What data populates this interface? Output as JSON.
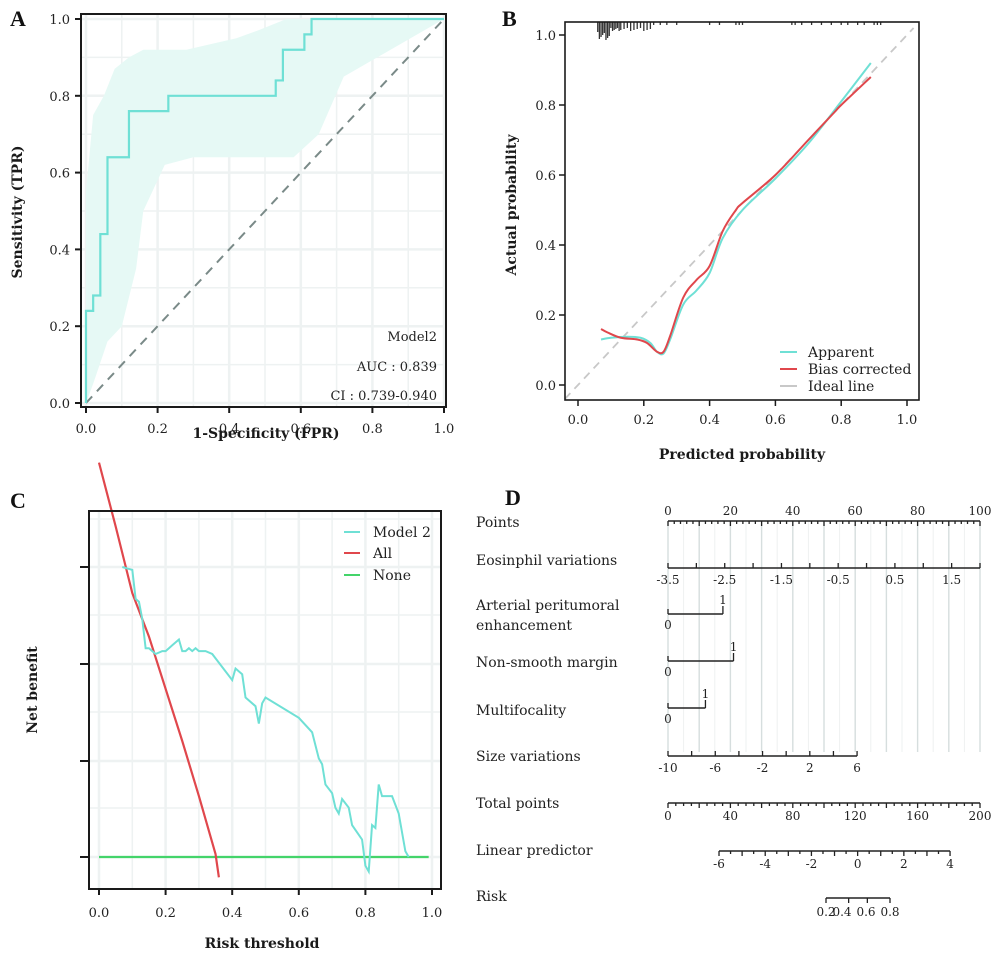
{
  "chart_data": [
    {
      "panel": "A",
      "type": "line",
      "title": "",
      "xlabel": "1-Specificity (FPR)",
      "ylabel": "Sensitivity (TPR)",
      "xlim": [
        0,
        1
      ],
      "ylim": [
        0,
        1
      ],
      "grid": true,
      "xticks": [
        "0.0",
        "0.2",
        "0.4",
        "0.6",
        "0.8",
        "1.0"
      ],
      "yticks": [
        "0.0",
        "0.2",
        "0.4",
        "0.6",
        "0.8",
        "1.0"
      ],
      "series": [
        {
          "name": "ROC Model2",
          "color": "#6fe0d5",
          "x": [
            0,
            0,
            0.02,
            0.02,
            0.04,
            0.04,
            0.06,
            0.06,
            0.12,
            0.12,
            0.23,
            0.23,
            0.53,
            0.53,
            0.55,
            0.55,
            0.61,
            0.61,
            0.63,
            0.63,
            1.0
          ],
          "y": [
            0,
            0.24,
            0.24,
            0.28,
            0.28,
            0.44,
            0.44,
            0.64,
            0.64,
            0.76,
            0.76,
            0.8,
            0.8,
            0.84,
            0.84,
            0.92,
            0.92,
            0.96,
            0.96,
            1.0,
            1.0
          ]
        },
        {
          "name": "Reference",
          "color": "#7a8a88",
          "style": "dashed",
          "x": [
            0,
            1
          ],
          "y": [
            0,
            1
          ]
        }
      ],
      "ci_band": {
        "color": "#e6f9f5",
        "x": [
          0,
          0,
          0.02,
          0.05,
          0.08,
          0.12,
          0.16,
          0.28,
          0.42,
          0.48,
          0.56,
          0.62,
          0.75,
          1.0,
          1.0,
          0.72,
          0.65,
          0.58,
          0.5,
          0.3,
          0.22,
          0.16,
          0.14,
          0.1,
          0.06,
          0.02,
          0
        ],
        "y": [
          0.1,
          0.55,
          0.75,
          0.8,
          0.87,
          0.9,
          0.92,
          0.92,
          0.95,
          0.97,
          1.0,
          1.0,
          1.0,
          1.0,
          1.0,
          0.85,
          0.7,
          0.64,
          0.64,
          0.64,
          0.62,
          0.5,
          0.35,
          0.2,
          0.16,
          0.05,
          0
        ]
      },
      "annotations": [
        "Model2",
        "AUC : 0.839",
        "CI : 0.739-0.940"
      ]
    },
    {
      "panel": "B",
      "type": "line",
      "title": "",
      "xlabel": "Predicted probability",
      "ylabel": "Actual probability",
      "xlim": [
        0,
        1
      ],
      "ylim": [
        0,
        1
      ],
      "grid": false,
      "xticks": [
        "0.0",
        "0.2",
        "0.4",
        "0.6",
        "0.8",
        "1.0"
      ],
      "yticks": [
        "0.0",
        "0.2",
        "0.4",
        "0.6",
        "0.8",
        "1.0"
      ],
      "legend_position": "bottom-right",
      "series": [
        {
          "name": "Apparent",
          "color": "#6fe0d5",
          "x": [
            0.07,
            0.1,
            0.15,
            0.19,
            0.22,
            0.24,
            0.26,
            0.28,
            0.32,
            0.36,
            0.4,
            0.44,
            0.5,
            0.6,
            0.7,
            0.8,
            0.89
          ],
          "y": [
            0.13,
            0.135,
            0.138,
            0.135,
            0.12,
            0.095,
            0.09,
            0.13,
            0.23,
            0.27,
            0.32,
            0.42,
            0.5,
            0.59,
            0.69,
            0.81,
            0.92
          ]
        },
        {
          "name": "Bias corrected",
          "color": "#e0474c",
          "x": [
            0.07,
            0.09,
            0.13,
            0.18,
            0.21,
            0.24,
            0.26,
            0.28,
            0.32,
            0.36,
            0.4,
            0.44,
            0.48,
            0.5,
            0.6,
            0.7,
            0.78,
            0.8,
            0.89
          ],
          "y": [
            0.16,
            0.15,
            0.135,
            0.13,
            0.12,
            0.095,
            0.095,
            0.14,
            0.25,
            0.3,
            0.34,
            0.44,
            0.5,
            0.52,
            0.6,
            0.7,
            0.78,
            0.8,
            0.88
          ]
        },
        {
          "name": "Ideal line",
          "color": "#c8c8c8",
          "style": "dashed",
          "x": [
            -0.04,
            1.02
          ],
          "y": [
            -0.04,
            1.02
          ]
        }
      ],
      "rug_x": [
        0.06,
        0.065,
        0.07,
        0.075,
        0.08,
        0.085,
        0.09,
        0.095,
        0.1,
        0.105,
        0.11,
        0.115,
        0.12,
        0.125,
        0.13,
        0.14,
        0.15,
        0.16,
        0.17,
        0.18,
        0.19,
        0.2,
        0.21,
        0.22,
        0.23,
        0.25,
        0.27,
        0.3,
        0.4,
        0.43,
        0.48,
        0.49,
        0.5,
        0.65,
        0.66,
        0.68,
        0.71,
        0.74,
        0.77,
        0.8,
        0.82,
        0.85,
        0.87,
        0.9,
        0.91,
        0.92
      ]
    },
    {
      "panel": "C",
      "type": "line",
      "title": "",
      "xlabel": "Risk threshold",
      "ylabel": "Net benefit",
      "xlim": [
        0,
        1
      ],
      "grid": true,
      "xticks": [
        "0.0",
        "0.2",
        "0.4",
        "0.6",
        "0.8",
        "1.0"
      ],
      "yticks": [],
      "ylim_units": "unlabeled",
      "legend_position": "top-right",
      "series": [
        {
          "name": "Model 2",
          "color": "#6fe0d5",
          "x": [
            0.07,
            0.1,
            0.11,
            0.12,
            0.13,
            0.14,
            0.15,
            0.17,
            0.19,
            0.2,
            0.21,
            0.22,
            0.24,
            0.25,
            0.26,
            0.27,
            0.28,
            0.29,
            0.3,
            0.31,
            0.32,
            0.34,
            0.4,
            0.41,
            0.43,
            0.44,
            0.47,
            0.48,
            0.49,
            0.5,
            0.6,
            0.64,
            0.66,
            0.67,
            0.68,
            0.7,
            0.71,
            0.72,
            0.73,
            0.75,
            0.76,
            0.79,
            0.8,
            0.81,
            0.82,
            0.83,
            0.84,
            0.85,
            0.88,
            0.9,
            0.92,
            0.93
          ],
          "y": [
            1.0,
            0.99,
            0.89,
            0.88,
            0.82,
            0.72,
            0.72,
            0.7,
            0.71,
            0.71,
            0.72,
            0.73,
            0.75,
            0.71,
            0.71,
            0.72,
            0.71,
            0.72,
            0.71,
            0.71,
            0.71,
            0.7,
            0.61,
            0.65,
            0.63,
            0.55,
            0.52,
            0.46,
            0.53,
            0.55,
            0.48,
            0.43,
            0.34,
            0.32,
            0.25,
            0.22,
            0.17,
            0.15,
            0.2,
            0.17,
            0.11,
            0.06,
            -0.03,
            -0.05,
            0.11,
            0.1,
            0.25,
            0.21,
            0.21,
            0.15,
            0.02,
            0.0
          ]
        },
        {
          "name": "All",
          "color": "#e0474c",
          "x": [
            0.0,
            0.05,
            0.1,
            0.15,
            0.2,
            0.25,
            0.3,
            0.35,
            0.36
          ],
          "y": [
            1.36,
            1.14,
            0.91,
            0.76,
            0.58,
            0.4,
            0.21,
            0.01,
            -0.07
          ]
        },
        {
          "name": "None",
          "color": "#44d46a",
          "x": [
            0.0,
            0.99
          ],
          "y": [
            0,
            0
          ]
        }
      ]
    },
    {
      "panel": "D",
      "type": "nomogram",
      "rows": [
        {
          "label": "Points",
          "min": 0,
          "max": 100,
          "major": [
            0,
            20,
            40,
            60,
            80,
            100
          ],
          "tick_labels": [
            "0",
            "20",
            "40",
            "60",
            "80",
            "100"
          ],
          "points_range": [
            0,
            100
          ]
        },
        {
          "label": "Eosinphil variations",
          "min": -3.5,
          "max": 2.0,
          "tick_labels": [
            "-3.5",
            "-2.5",
            "-1.5",
            "-0.5",
            "0.5",
            "1.5"
          ],
          "points_range": [
            0,
            100
          ]
        },
        {
          "label": "Arterial peritumoral enhancement",
          "levels": [
            "0",
            "1"
          ],
          "points": [
            0,
            17.6
          ]
        },
        {
          "label": "Non-smooth margin",
          "levels": [
            "0",
            "1"
          ],
          "points": [
            0,
            21
          ]
        },
        {
          "label": "Multifocality",
          "levels": [
            "0",
            "1"
          ],
          "points": [
            0,
            12
          ]
        },
        {
          "label": "Size variations",
          "min": -10,
          "max": 6,
          "tick_labels": [
            "-10",
            "-6",
            "-2",
            "2",
            "6"
          ],
          "points_range": [
            0,
            60.6
          ]
        },
        {
          "label": "Total points",
          "min": 0,
          "max": 200,
          "tick_labels": [
            "0",
            "40",
            "80",
            "120",
            "160",
            "200"
          ]
        },
        {
          "label": "Linear predictor",
          "min": -6,
          "max": 4,
          "tick_labels": [
            "-6",
            "-4",
            "-2",
            "0",
            "2",
            "4"
          ],
          "total_points_range": [
            32.7,
            180.8
          ]
        },
        {
          "label": "Risk",
          "min": 0.2,
          "max": 0.8,
          "tick_labels": [
            "0.2",
            "0.4",
            "0.6",
            "0.8"
          ],
          "total_points_range": [
            101.9,
            143
          ]
        }
      ]
    }
  ],
  "panels": {
    "A": {
      "letter": "A",
      "xlabel": "1-Specificity (FPR)",
      "ylabel": "Sensitivity (TPR)",
      "ann1": "Model2",
      "ann2": "AUC : 0.839",
      "ann3": "CI : 0.739-0.940"
    },
    "B": {
      "letter": "B",
      "xlabel": "Predicted probability",
      "ylabel": "Actual probability",
      "legend": [
        "Apparent",
        "Bias corrected",
        "Ideal line"
      ]
    },
    "C": {
      "letter": "C",
      "xlabel": "Risk threshold",
      "ylabel": "Net benefit",
      "legend": [
        "Model 2",
        "All",
        "None"
      ]
    },
    "D": {
      "letter": "D"
    }
  }
}
